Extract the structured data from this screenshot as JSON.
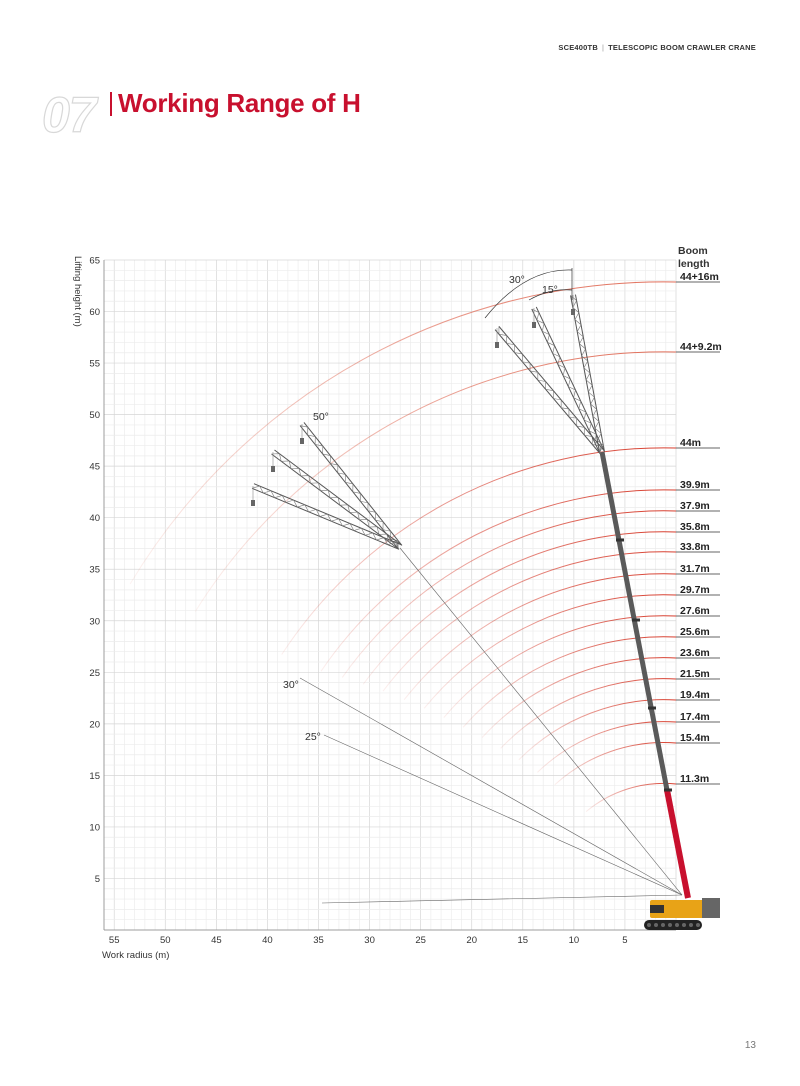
{
  "header": {
    "model": "SCE400TB",
    "product": "TELESCOPIC BOOM CRAWLER CRANE"
  },
  "section": {
    "number": "07",
    "title": "Working Range of H"
  },
  "page_number": "13",
  "colors": {
    "brand_red": "#c8102e",
    "grid": "#e2e2e2",
    "boom_gray": "#5a5a5a",
    "base_yellow": "#e8a317"
  },
  "chart_data": {
    "type": "diagram",
    "title": "",
    "xlabel": "Work radius  (m)",
    "ylabel": "Lifting height  (m)",
    "x_ticks": [
      "55",
      "50",
      "45",
      "40",
      "35",
      "30",
      "25",
      "20",
      "15",
      "10",
      "5"
    ],
    "y_ticks": [
      "5",
      "10",
      "15",
      "20",
      "25",
      "30",
      "35",
      "40",
      "45",
      "50",
      "55",
      "60",
      "65"
    ],
    "xlim": [
      0,
      56
    ],
    "ylim": [
      0,
      65
    ],
    "boom_header": "Boom\nlength",
    "boom_lengths": [
      "44+16m",
      "44+9.2m",
      "44m",
      "39.9m",
      "37.9m",
      "35.8m",
      "33.8m",
      "31.7m",
      "29.7m",
      "27.6m",
      "25.6m",
      "23.6m",
      "21.5m",
      "19.4m",
      "17.4m",
      "15.4m",
      "11.3m"
    ],
    "jib_angles": [
      "30°",
      "15°",
      "50°",
      "30°",
      "25°"
    ]
  }
}
